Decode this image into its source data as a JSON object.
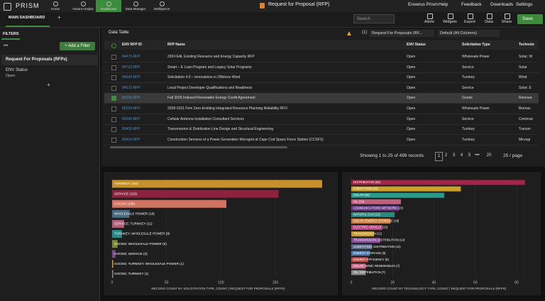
{
  "app": {
    "logo": "PRISM",
    "nav": [
      "Home",
      "Instant Analyst",
      "Dashboard",
      "Data Manager",
      "Intelligence"
    ],
    "page_title": "Request for Proposal (RFP)",
    "menu": [
      "Enverus Prism",
      "Help",
      "Feedback",
      "Downloads",
      "Settings"
    ]
  },
  "toolbar": {
    "tab": "MAIN DASHBOARD",
    "add_tab": "+",
    "search": "Search",
    "actions": [
      "Alerts",
      "Widgets",
      "Export",
      "Data",
      "Share"
    ],
    "save": "Save"
  },
  "sidebar": {
    "title": "FILTERS",
    "more": "•••",
    "add_filter": "+ Add a Filter",
    "group": "Request For Proposals (RFPs)",
    "filter_name": "ENV Status",
    "filter_value": "Open",
    "add": "+"
  },
  "table": {
    "title": "Data Table",
    "count": "(1)",
    "source": "Request For Proposals (RF...",
    "view": "Default (All Columns)",
    "columns": [
      "ENV RFP ID",
      "RFP Name",
      "ENV Status",
      "Solicitation Type",
      "Technolo"
    ],
    "rows": [
      [
        "84473-RFP",
        "2024 EAL Existing Resource and Energy Capacity RFP",
        "Open",
        "Wholesale Power",
        "Solar; W"
      ],
      [
        "84733-RFP",
        "Smart – E Loan Program and Legacy Solar Programs",
        "Open",
        "Service",
        "Solar"
      ],
      [
        "84643-RFP",
        "Solicitation 4.0 – Innovations in Offshore Wind",
        "Open",
        "Turnkey",
        "Wind"
      ],
      [
        "84672-RFP",
        "Local Project Developer Qualifications and Readiness",
        "Open",
        "Service",
        "Solar; E"
      ],
      [
        "85236-RFP",
        "Fall 2025 Indexed Renewable Energy Credit Agreement",
        "Open",
        "Goods",
        "Renewa"
      ],
      [
        "85224-RFP",
        "2028-2031 Firm Zero-Emitting Integrated Resource Planning Reliability RFO",
        "Open",
        "Wholesale Power",
        "Biomas"
      ],
      [
        "85390-RFP",
        "Cellular Antenna Installation Consultant Services",
        "Open",
        "Service",
        "Commun"
      ],
      [
        "85406-RFP",
        "Transmission & Distribution Line Design and Structural Engineering",
        "Open",
        "Turnkey",
        "Transm"
      ],
      [
        "85418-RFP",
        "Construction Services of a Power Generation Microgrid at Cape Cod Space Force Station (CCSFS)",
        "Open",
        "Turnkey",
        "Microgr"
      ]
    ],
    "selected_row": 4,
    "summary": "Showing 1 to 25 of 499 records",
    "pages": [
      "1",
      "2",
      "3",
      "4",
      "5",
      "•••",
      "20"
    ],
    "current_page": 0,
    "page_size": "25 / page"
  },
  "chart_data": [
    {
      "type": "hbar",
      "xlabel": "RECORD COUNT BY SOLICITATION TYPE, COUNT | REQUEST FOR PROPOSALS (RFPS)",
      "categories": [
        "TURNKEY (193)",
        "SERVICE (153)",
        "GOODS (105)",
        "WHOLESALE POWER (16)",
        "SERVICE; TURNKEY (11)",
        "TURNKEY; WHOLESALE POWER (9)",
        "GOODS; WHOLESALE POWER (5)",
        "GOODS; SERVICE (3)",
        "GOODS; TURNKEY; WHOLESALE POWER (1)",
        "GOODS; TURNKEY (1)"
      ],
      "values": [
        193,
        153,
        105,
        16,
        11,
        9,
        5,
        3,
        1,
        1
      ],
      "colors": [
        "#c8902a",
        "#8e2040",
        "#d27260",
        "#4a6a80",
        "#b0607a",
        "#2a8a8a",
        "#7a8a30",
        "#7a4a8a",
        "#c8a030",
        "#8a8a8a"
      ],
      "xlim": [
        0,
        195
      ],
      "xticks": [
        0,
        50,
        100,
        150
      ],
      "grid": true
    },
    {
      "type": "hbar",
      "xlabel": "RECORD COUNT BY TECHNOLOGY TYPE, COUNT | REQUEST FOR PROPOSALS (RFPS)",
      "categories": [
        "DISTRIBUTION (84)",
        "SUBSTATION (53)",
        "SOLAR (45)",
        "OIL (24)",
        "COMMUNICATIONS NETWORK (23)",
        "NATURAL GAS (21)",
        "SOLAR; ENERGY STORAGE (19)",
        "ELECTRIC VEHICLE (15)",
        "TRANSMISSION (11)",
        "TRANSMISSION; DISTRIBUTION (14)",
        "SUBSTATION; DISTRIBUTION (10)",
        "ENERGY STORAGE (9)",
        "ENERGY EFFICIENCY (8)",
        "SOLAR; WIND; RENEWABLES (7)",
        "OIL; DISTRIBUTION (7)"
      ],
      "values": [
        84,
        53,
        45,
        24,
        23,
        21,
        19,
        15,
        11,
        14,
        10,
        9,
        8,
        7,
        7
      ],
      "colors": [
        "#a0264a",
        "#c9a227",
        "#2a9a8a",
        "#c06080",
        "#6a3a8a",
        "#2a8a7a",
        "#d08040",
        "#b04080",
        "#c89a30",
        "#8a4a9a",
        "#5a6a8a",
        "#4a7ab0",
        "#c04a4a",
        "#d06a8a",
        "#888888"
      ],
      "xlim": [
        0,
        85
      ],
      "xticks": [
        0,
        20,
        40,
        60,
        80
      ],
      "grid": true
    }
  ]
}
